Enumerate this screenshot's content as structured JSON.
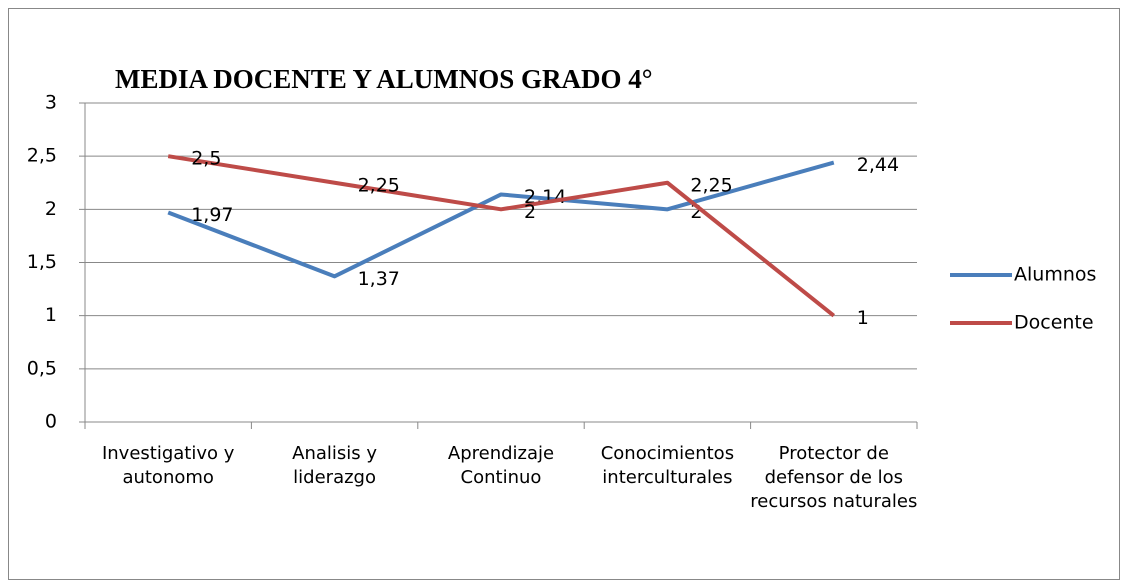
{
  "chart_data": {
    "type": "line",
    "title": "MEDIA DOCENTE Y ALUMNOS GRADO 4°",
    "categories": [
      "Investigativo y autonomo",
      "Analisis y liderazgo",
      "Aprendizaje Continuo",
      "Conocimientos interculturales",
      "Protector de defensor de los recursos naturales"
    ],
    "series": [
      {
        "name": "Alumnos",
        "color": "#4a7ebb",
        "values": [
          1.97,
          1.37,
          2.14,
          2,
          2.44
        ],
        "value_labels": [
          "1,97",
          "1,37",
          "2,14",
          "2",
          "2,44"
        ]
      },
      {
        "name": "Docente",
        "color": "#be4b48",
        "values": [
          2.5,
          2.25,
          2,
          2.25,
          1
        ],
        "value_labels": [
          "2,5",
          "2,25",
          "2",
          "2,25",
          "1"
        ]
      }
    ],
    "ylim": [
      0,
      3
    ],
    "yticks": [
      0,
      {
        "value": 0.5,
        "label": "0,5"
      },
      1,
      {
        "value": 1.5,
        "label": "1,5"
      },
      2,
      {
        "value": 2.5,
        "label": "2,5"
      },
      3
    ],
    "grid": true,
    "legend": "right"
  }
}
